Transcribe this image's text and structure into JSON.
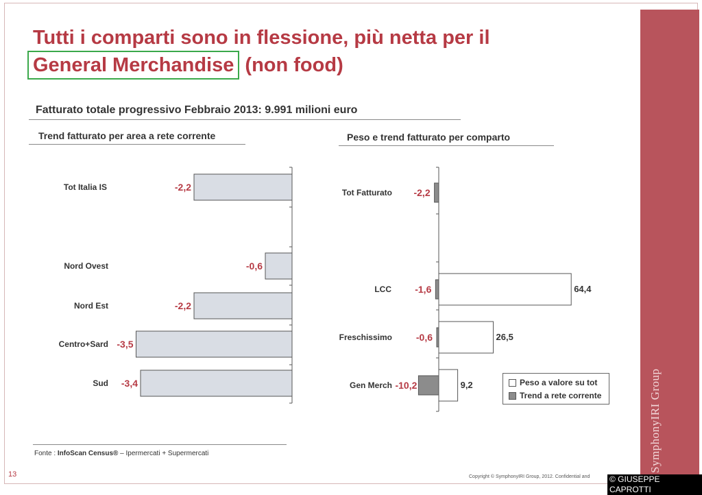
{
  "title_line1": "Tutti i comparti sono in flessione, più netta per il",
  "title_highlight": "General Merchandise",
  "title_rest": "(non food)",
  "subtitle": "Fatturato totale progressivo Febbraio 2013: 9.991 milioni euro",
  "chart_data": [
    {
      "type": "bar",
      "orientation": "horizontal",
      "title": "Trend fatturato per area a rete corrente",
      "categories": [
        "Tot Italia IS",
        "Nord Ovest",
        "Nord Est",
        "Centro+Sard",
        "Sud"
      ],
      "values": [
        -2.2,
        -0.6,
        -2.2,
        -3.5,
        -3.4
      ],
      "labels": [
        "-2,2",
        "-0,6",
        "-2,2",
        "-3,5",
        "-3,4"
      ],
      "colors": {
        "bar": "#d9dde4",
        "label": "#b63a44"
      }
    },
    {
      "type": "bar",
      "orientation": "horizontal",
      "title": "Peso e trend fatturato per comparto",
      "categories": [
        "Tot Fatturato",
        "LCC",
        "Freschissimo",
        "Gen Merch"
      ],
      "series": [
        {
          "name": "Peso a valore su tot",
          "values": [
            null,
            64.4,
            26.5,
            9.2
          ],
          "labels": [
            "",
            "64,4",
            "26,5",
            "9,2"
          ],
          "color": "#ffffff"
        },
        {
          "name": "Trend a rete corrente",
          "values": [
            -2.2,
            -1.6,
            -0.6,
            -10.2
          ],
          "labels": [
            "-2,2",
            "-1,6",
            "-0,6",
            "-10,2"
          ],
          "color": "#8c8c8c"
        }
      ]
    }
  ],
  "footer": {
    "source_prefix": "Fonte : ",
    "source_bold": "InfoScan Census®",
    "source_rest": " – Ipermercati + Supermercati",
    "page_number": "13",
    "copyright": "Copyright © SymphonyIRI Group, 2012. Confidential and",
    "watermark": "© GIUSEPPE CAPROTTI",
    "brand": "SymphonyIRI Group"
  }
}
